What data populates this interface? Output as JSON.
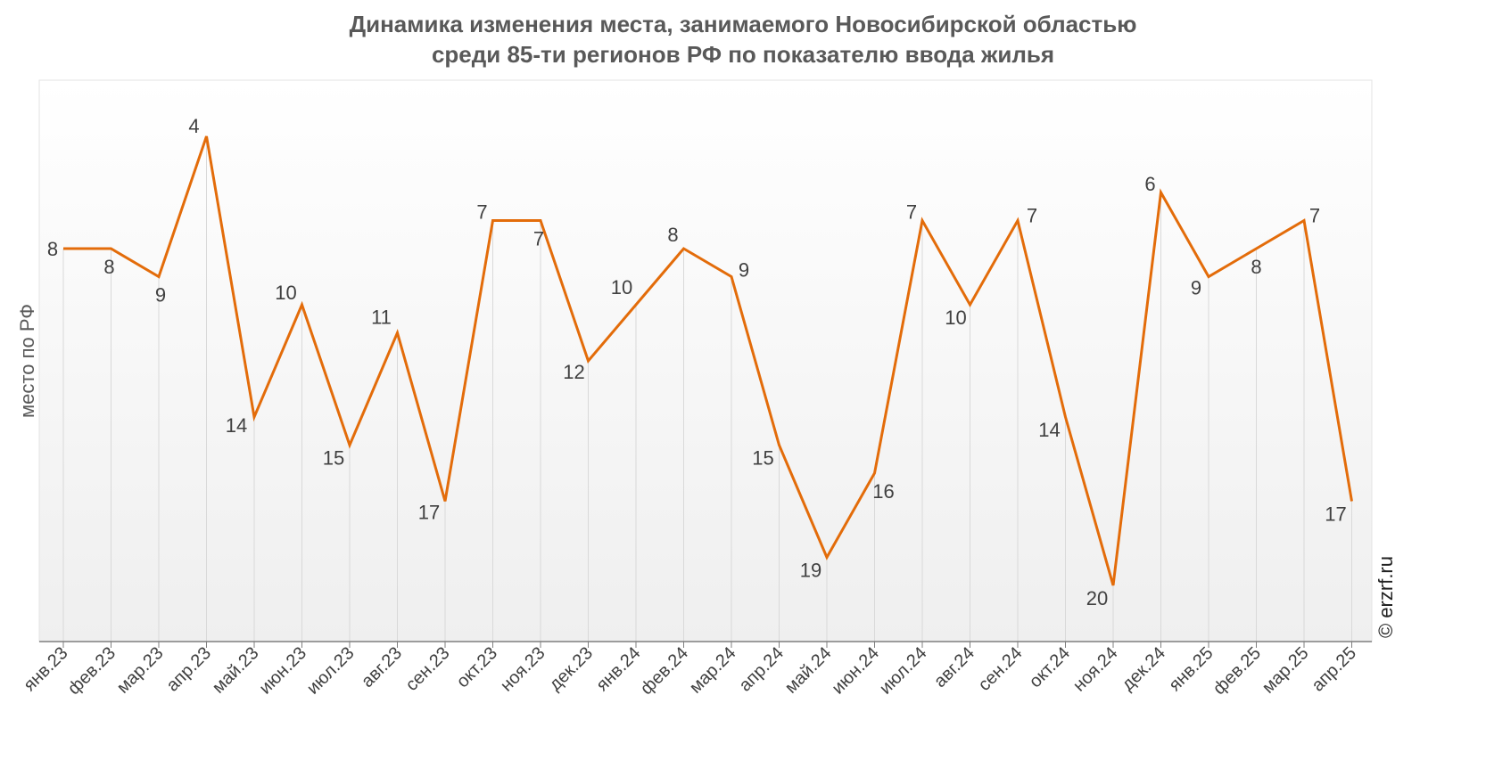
{
  "chart_data": {
    "type": "line",
    "title_line1": "Динамика изменения места, занимаемого Новосибирской областью",
    "title_line2": "среди 85-ти регионов РФ по показателю ввода жилья",
    "ylabel": "место по РФ",
    "xlabel": "",
    "copyright": "© erzrf.ru",
    "y_reversed": true,
    "ylim": [
      2,
      22
    ],
    "grid": "vertical",
    "line_color": "#E36C0A",
    "categories": [
      "янв.23",
      "фев.23",
      "мар.23",
      "апр.23",
      "май.23",
      "июн.23",
      "июл.23",
      "авг.23",
      "сен.23",
      "окт.23",
      "ноя.23",
      "дек.23",
      "янв.24",
      "фев.24",
      "мар.24",
      "апр.24",
      "май.24",
      "июн.24",
      "июл.24",
      "авг.24",
      "сен.24",
      "окт.24",
      "ноя.24",
      "дек.24",
      "янв.25",
      "фев.25",
      "мар.25",
      "апр.25"
    ],
    "values": [
      8,
      8,
      9,
      4,
      14,
      10,
      15,
      11,
      17,
      7,
      7,
      12,
      10,
      8,
      9,
      15,
      19,
      16,
      7,
      10,
      7,
      14,
      20,
      6,
      9,
      8,
      7,
      17
    ],
    "labels": [
      "8",
      "8",
      "9",
      "4",
      "14",
      "10",
      "15",
      "11",
      "17",
      "7",
      "7",
      "12",
      "10",
      "8",
      "9",
      "15",
      "19",
      "16",
      "7",
      "10",
      "7",
      "14",
      "20",
      "6",
      "9",
      "8",
      "7",
      "17"
    ]
  }
}
